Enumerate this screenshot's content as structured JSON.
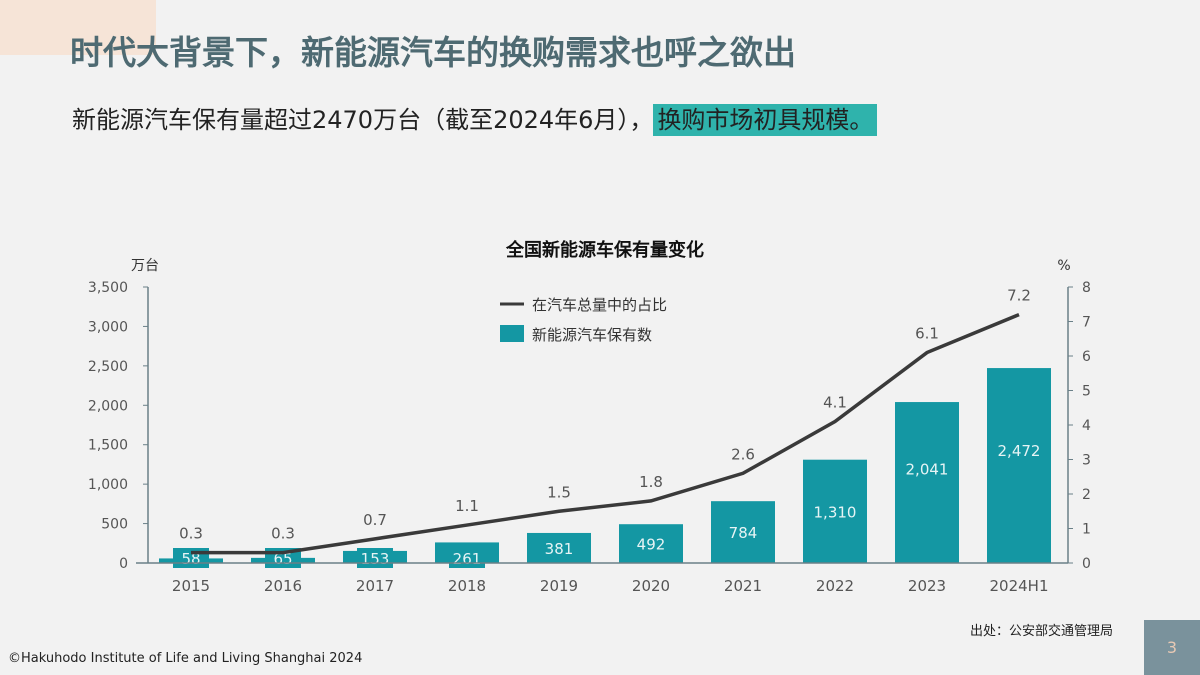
{
  "slide": {
    "title": "时代大背景下，新能源汽车的换购需求也呼之欲出",
    "subtitle_plain": "新能源汽车保有量超过2470万台（截至2024年6月），",
    "subtitle_highlight": "换购市场初具规模。",
    "highlight_color": "#2fb3ac",
    "source": "出处：公安部交通管理局",
    "copyright": "©Hakuhodo Institute of Life and Living Shanghai 2024",
    "page_number": "3"
  },
  "chart_data": {
    "type": "bar+line",
    "title": "全国新能源车保有量变化",
    "left_unit": "万台",
    "right_unit": "%",
    "categories": [
      "2015",
      "2016",
      "2017",
      "2018",
      "2019",
      "2020",
      "2021",
      "2022",
      "2023",
      "2024H1"
    ],
    "series": [
      {
        "name": "新能源汽车保有数",
        "type": "bar",
        "axis": "left",
        "color": "#1497a3",
        "values": [
          58,
          65,
          153,
          261,
          381,
          492,
          784,
          1310,
          2041,
          2472
        ],
        "labels": [
          "58",
          "65",
          "153",
          "261",
          "381",
          "492",
          "784",
          "1,310",
          "2,041",
          "2,472"
        ]
      },
      {
        "name": "在汽车总量中的占比",
        "type": "line",
        "axis": "right",
        "color": "#3a3a3a",
        "values": [
          0.3,
          0.3,
          0.7,
          1.1,
          1.5,
          1.8,
          2.6,
          4.1,
          6.1,
          7.2
        ],
        "labels": [
          "0.3",
          "0.3",
          "0.7",
          "1.1",
          "1.5",
          "1.8",
          "2.6",
          "4.1",
          "6.1",
          "7.2"
        ]
      }
    ],
    "left_axis": {
      "range": [
        0,
        3500
      ],
      "ticks": [
        "0",
        "500",
        "1,000",
        "1,500",
        "2,000",
        "2,500",
        "3,000",
        "3,500"
      ]
    },
    "right_axis": {
      "range": [
        0,
        8
      ],
      "ticks": [
        "0",
        "1",
        "2",
        "3",
        "4",
        "5",
        "6",
        "7",
        "8"
      ]
    },
    "legend_position": "top-center",
    "grid": false
  }
}
